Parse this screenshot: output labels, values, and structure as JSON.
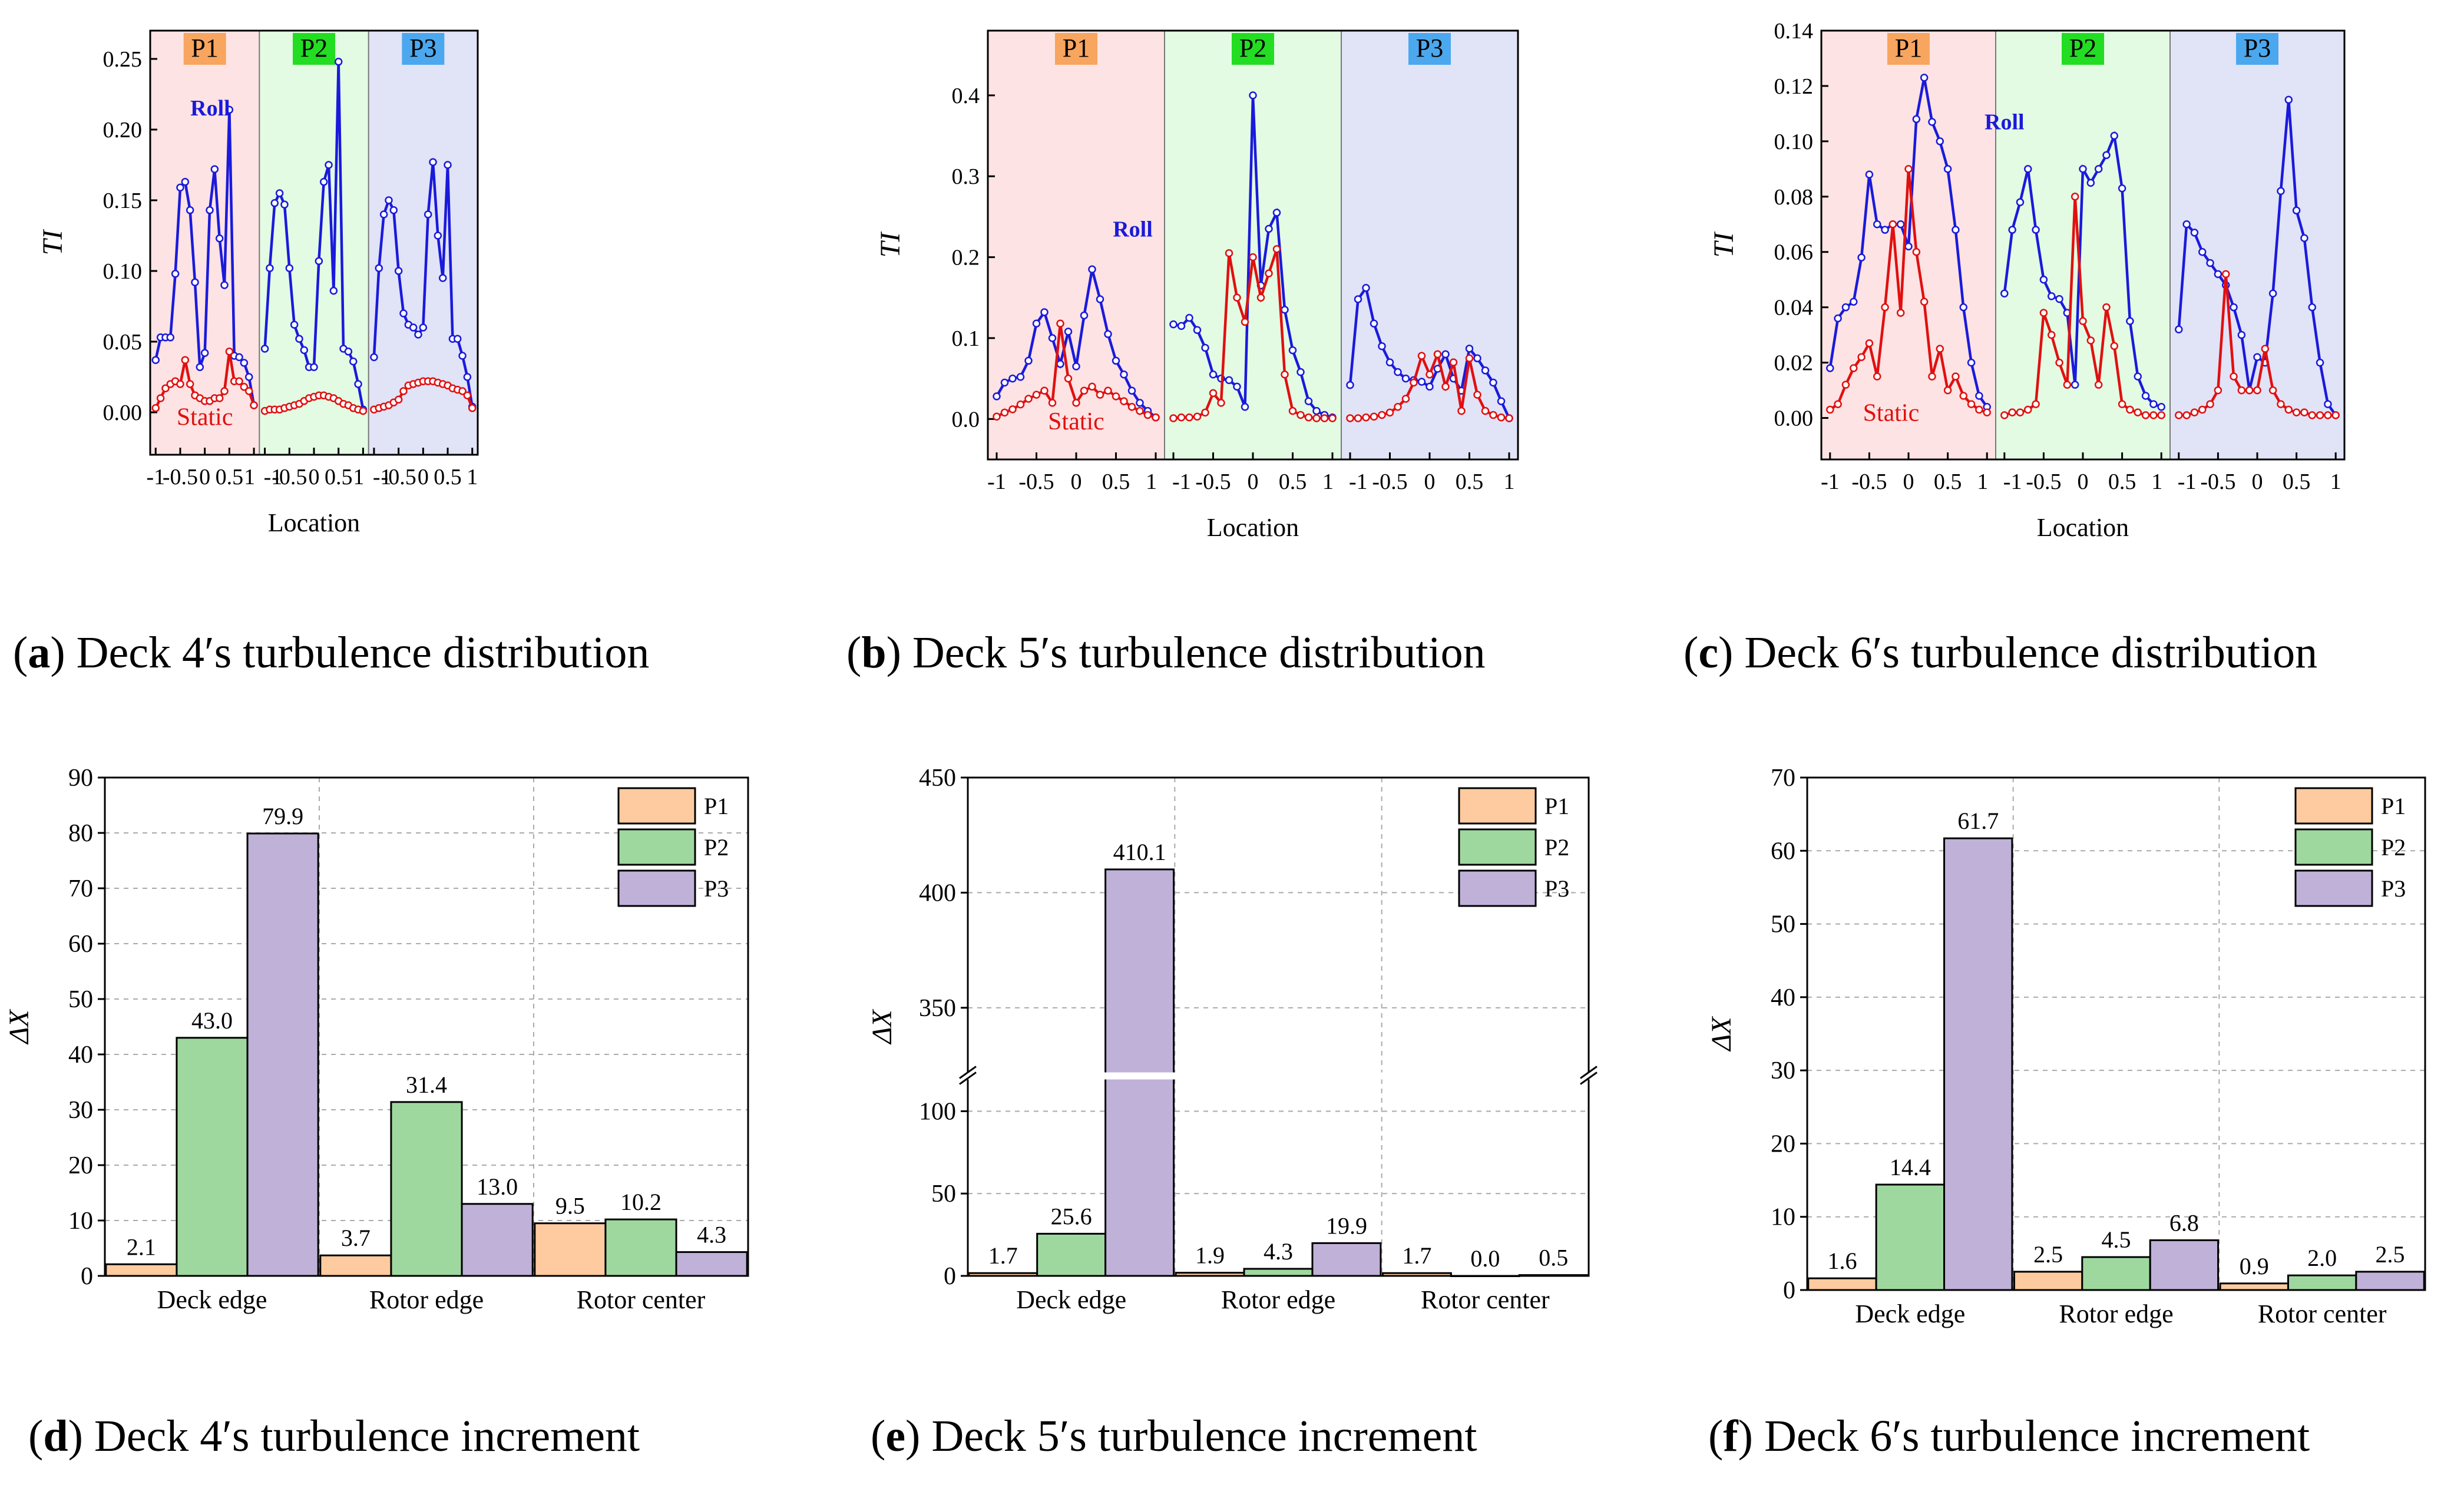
{
  "figure": {
    "captions": [
      {
        "label": "a",
        "text": "Deck 4′s turbulence distribution"
      },
      {
        "label": "b",
        "text": "Deck 5′s turbulence distribution"
      },
      {
        "label": "c",
        "text": "Deck 6′s turbulence distribution"
      },
      {
        "label": "d",
        "text": "Deck 4′s turbulence increment"
      },
      {
        "label": "e",
        "text": "Deck 5′s turbulence increment"
      },
      {
        "label": "f",
        "text": "Deck 6′s turbulence increment"
      }
    ]
  },
  "chart_data": [
    {
      "id": "a",
      "type": "line",
      "xlabel": "Location",
      "ylabel": "TI",
      "ylim": [
        -0.03,
        0.27
      ],
      "yticks": [
        0.0,
        0.05,
        0.1,
        0.15,
        0.2,
        0.25
      ],
      "ytick_decimals": 2,
      "regions": [
        {
          "name": "P1",
          "color": "#fde3e3",
          "label_color": "#f7a55f"
        },
        {
          "name": "P2",
          "color": "#e3fbe3",
          "label_color": "#22dd22"
        },
        {
          "name": "P3",
          "color": "#e1e3f7",
          "label_color": "#4ba8ee"
        }
      ],
      "region_xticks": [
        "-1",
        "-0.5",
        "0",
        "0.5",
        "1"
      ],
      "series": [
        {
          "name": "Roll",
          "color": "#1a1adb",
          "label_region": 0,
          "values": [
            [
              0.037,
              0.053,
              0.053,
              0.053,
              0.098,
              0.159,
              0.163,
              0.143,
              0.092,
              0.032,
              0.042,
              0.143,
              0.172,
              0.123,
              0.09,
              0.214,
              0.04,
              0.039,
              0.035,
              0.025,
              0.005
            ],
            [
              0.045,
              0.102,
              0.148,
              0.155,
              0.147,
              0.102,
              0.062,
              0.052,
              0.044,
              0.032,
              0.032,
              0.107,
              0.163,
              0.175,
              0.086,
              0.248,
              0.045,
              0.043,
              0.036,
              0.02,
              0.002
            ],
            [
              0.039,
              0.102,
              0.14,
              0.15,
              0.143,
              0.1,
              0.07,
              0.062,
              0.06,
              0.055,
              0.06,
              0.14,
              0.177,
              0.125,
              0.095,
              0.175,
              0.052,
              0.052,
              0.04,
              0.025,
              0.004
            ]
          ]
        },
        {
          "name": "Static",
          "color": "#e01010",
          "label_region": 0,
          "values": [
            [
              0.003,
              0.01,
              0.017,
              0.02,
              0.022,
              0.02,
              0.037,
              0.02,
              0.012,
              0.01,
              0.008,
              0.008,
              0.01,
              0.01,
              0.015,
              0.043,
              0.022,
              0.022,
              0.018,
              0.015,
              0.005
            ],
            [
              0.001,
              0.002,
              0.002,
              0.002,
              0.003,
              0.004,
              0.005,
              0.006,
              0.008,
              0.01,
              0.011,
              0.012,
              0.012,
              0.011,
              0.01,
              0.008,
              0.006,
              0.005,
              0.003,
              0.002,
              0.001
            ],
            [
              0.002,
              0.003,
              0.004,
              0.005,
              0.007,
              0.009,
              0.015,
              0.019,
              0.02,
              0.021,
              0.022,
              0.022,
              0.022,
              0.021,
              0.02,
              0.019,
              0.017,
              0.016,
              0.015,
              0.012,
              0.003
            ]
          ]
        }
      ]
    },
    {
      "id": "b",
      "type": "line",
      "xlabel": "Location",
      "ylabel": "TI",
      "ylim": [
        -0.05,
        0.48
      ],
      "yticks": [
        0.0,
        0.1,
        0.2,
        0.3,
        0.4
      ],
      "ytick_decimals": 1,
      "regions": [
        {
          "name": "P1",
          "color": "#fde3e3",
          "label_color": "#f7a55f"
        },
        {
          "name": "P2",
          "color": "#e3fbe3",
          "label_color": "#22dd22"
        },
        {
          "name": "P3",
          "color": "#e1e3f7",
          "label_color": "#4ba8ee"
        }
      ],
      "region_xticks": [
        "-1",
        "-0.5",
        "0",
        "0.5",
        "1"
      ],
      "series": [
        {
          "name": "Roll",
          "color": "#1a1adb",
          "label_region": 0,
          "values": [
            [
              0.028,
              0.045,
              0.05,
              0.052,
              0.072,
              0.118,
              0.132,
              0.1,
              0.068,
              0.108,
              0.065,
              0.128,
              0.185,
              0.148,
              0.105,
              0.072,
              0.055,
              0.035,
              0.02,
              0.01,
              0.002
            ],
            [
              0.117,
              0.115,
              0.125,
              0.11,
              0.088,
              0.055,
              0.05,
              0.048,
              0.04,
              0.015,
              0.4,
              0.165,
              0.235,
              0.255,
              0.135,
              0.085,
              0.058,
              0.022,
              0.01,
              0.005,
              0.002
            ],
            [
              0.042,
              0.148,
              0.162,
              0.118,
              0.09,
              0.07,
              0.058,
              0.05,
              0.048,
              0.046,
              0.04,
              0.062,
              0.08,
              0.05,
              0.035,
              0.087,
              0.075,
              0.06,
              0.045,
              0.022,
              0.001
            ]
          ]
        },
        {
          "name": "Static",
          "color": "#e01010",
          "label_region": 0,
          "values": [
            [
              0.003,
              0.008,
              0.012,
              0.018,
              0.025,
              0.03,
              0.035,
              0.02,
              0.118,
              0.05,
              0.02,
              0.035,
              0.04,
              0.03,
              0.035,
              0.028,
              0.022,
              0.015,
              0.01,
              0.005,
              0.002
            ],
            [
              0.001,
              0.002,
              0.002,
              0.003,
              0.008,
              0.032,
              0.02,
              0.205,
              0.15,
              0.12,
              0.2,
              0.15,
              0.18,
              0.21,
              0.055,
              0.01,
              0.005,
              0.002,
              0.001,
              0.001,
              0.001
            ],
            [
              0.001,
              0.001,
              0.002,
              0.003,
              0.005,
              0.008,
              0.015,
              0.025,
              0.045,
              0.078,
              0.055,
              0.08,
              0.04,
              0.07,
              0.01,
              0.075,
              0.03,
              0.01,
              0.005,
              0.002,
              0.001
            ]
          ]
        }
      ]
    },
    {
      "id": "c",
      "type": "line",
      "xlabel": "Location",
      "ylabel": "TI",
      "ylim": [
        -0.015,
        0.14
      ],
      "yticks": [
        0.0,
        0.02,
        0.04,
        0.06,
        0.08,
        0.1,
        0.12,
        0.14
      ],
      "ytick_decimals": 2,
      "regions": [
        {
          "name": "P1",
          "color": "#fde3e3",
          "label_color": "#f7a55f"
        },
        {
          "name": "P2",
          "color": "#e3fbe3",
          "label_color": "#22dd22"
        },
        {
          "name": "P3",
          "color": "#e1e3f7",
          "label_color": "#4ba8ee"
        }
      ],
      "region_xticks": [
        "-1",
        "-0.5",
        "0",
        "0.5",
        "1"
      ],
      "series": [
        {
          "name": "Roll",
          "color": "#1a1adb",
          "label_region": 1,
          "values": [
            [
              0.018,
              0.036,
              0.04,
              0.042,
              0.058,
              0.088,
              0.07,
              0.068,
              0.07,
              0.07,
              0.062,
              0.108,
              0.123,
              0.107,
              0.1,
              0.09,
              0.068,
              0.04,
              0.02,
              0.008,
              0.004
            ],
            [
              0.045,
              0.068,
              0.078,
              0.09,
              0.068,
              0.05,
              0.044,
              0.043,
              0.038,
              0.012,
              0.09,
              0.085,
              0.09,
              0.095,
              0.102,
              0.083,
              0.035,
              0.015,
              0.008,
              0.005,
              0.004
            ],
            [
              0.032,
              0.07,
              0.067,
              0.06,
              0.056,
              0.052,
              0.048,
              0.04,
              0.03,
              0.01,
              0.022,
              0.02,
              0.045,
              0.082,
              0.115,
              0.075,
              0.065,
              0.04,
              0.02,
              0.005,
              0.001
            ]
          ]
        },
        {
          "name": "Static",
          "color": "#e01010",
          "label_region": 0,
          "values": [
            [
              0.003,
              0.005,
              0.012,
              0.018,
              0.022,
              0.027,
              0.015,
              0.04,
              0.07,
              0.038,
              0.09,
              0.06,
              0.042,
              0.015,
              0.025,
              0.01,
              0.015,
              0.008,
              0.005,
              0.003,
              0.002
            ],
            [
              0.001,
              0.002,
              0.002,
              0.003,
              0.005,
              0.038,
              0.03,
              0.02,
              0.012,
              0.08,
              0.035,
              0.028,
              0.012,
              0.04,
              0.026,
              0.005,
              0.003,
              0.002,
              0.001,
              0.001,
              0.001
            ],
            [
              0.001,
              0.001,
              0.002,
              0.003,
              0.005,
              0.01,
              0.052,
              0.015,
              0.01,
              0.01,
              0.01,
              0.025,
              0.01,
              0.005,
              0.003,
              0.002,
              0.002,
              0.001,
              0.001,
              0.001,
              0.001
            ]
          ]
        }
      ]
    },
    {
      "id": "d",
      "type": "bar",
      "ylabel": "ΔX",
      "categories": [
        "Deck edge",
        "Rotor edge",
        "Rotor center"
      ],
      "ylim": [
        0,
        90
      ],
      "yticks": [
        0,
        10,
        20,
        30,
        40,
        50,
        60,
        70,
        80,
        90
      ],
      "series": [
        {
          "name": "P1",
          "color": "#fdcb9f",
          "values": [
            2.1,
            3.7,
            9.5
          ],
          "labels": [
            "2.1",
            "3.7",
            "9.5"
          ]
        },
        {
          "name": "P2",
          "color": "#9fd89f",
          "values": [
            43.0,
            31.4,
            10.2
          ],
          "labels": [
            "43.0",
            "31.4",
            "10.2"
          ]
        },
        {
          "name": "P3",
          "color": "#bfb1d8",
          "values": [
            79.9,
            13.0,
            4.3
          ],
          "labels": [
            "79.9",
            "13.0",
            "4.3"
          ]
        }
      ]
    },
    {
      "id": "e",
      "type": "bar",
      "ylabel": "ΔX",
      "categories": [
        "Deck edge",
        "Rotor edge",
        "Rotor center"
      ],
      "ylim": [
        0,
        450
      ],
      "yticks": [
        0,
        50,
        100,
        350,
        400,
        450
      ],
      "axis_break": {
        "lower_max": 115,
        "upper_min": 325,
        "upper_max": 450
      },
      "series": [
        {
          "name": "P1",
          "color": "#fdcb9f",
          "values": [
            1.7,
            1.9,
            1.7
          ],
          "labels": [
            "1.7",
            "1.9",
            "1.7"
          ]
        },
        {
          "name": "P2",
          "color": "#9fd89f",
          "values": [
            25.6,
            4.3,
            0.0
          ],
          "labels": [
            "25.6",
            "4.3",
            "0.0"
          ]
        },
        {
          "name": "P3",
          "color": "#bfb1d8",
          "values": [
            410.1,
            19.9,
            0.5
          ],
          "labels": [
            "410.1",
            "19.9",
            "0.5"
          ]
        }
      ]
    },
    {
      "id": "f",
      "type": "bar",
      "ylabel": "ΔX",
      "categories": [
        "Deck edge",
        "Rotor edge",
        "Rotor center"
      ],
      "ylim": [
        0,
        70
      ],
      "yticks": [
        0,
        10,
        20,
        30,
        40,
        50,
        60,
        70
      ],
      "series": [
        {
          "name": "P1",
          "color": "#fdcb9f",
          "values": [
            1.6,
            2.5,
            0.9
          ],
          "labels": [
            "1.6",
            "2.5",
            "0.9"
          ]
        },
        {
          "name": "P2",
          "color": "#9fd89f",
          "values": [
            14.4,
            4.5,
            2.0
          ],
          "labels": [
            "14.4",
            "4.5",
            "2.0"
          ]
        },
        {
          "name": "P3",
          "color": "#bfb1d8",
          "values": [
            61.7,
            6.8,
            2.5
          ],
          "labels": [
            "61.7",
            "6.8",
            "2.5"
          ]
        }
      ]
    }
  ]
}
